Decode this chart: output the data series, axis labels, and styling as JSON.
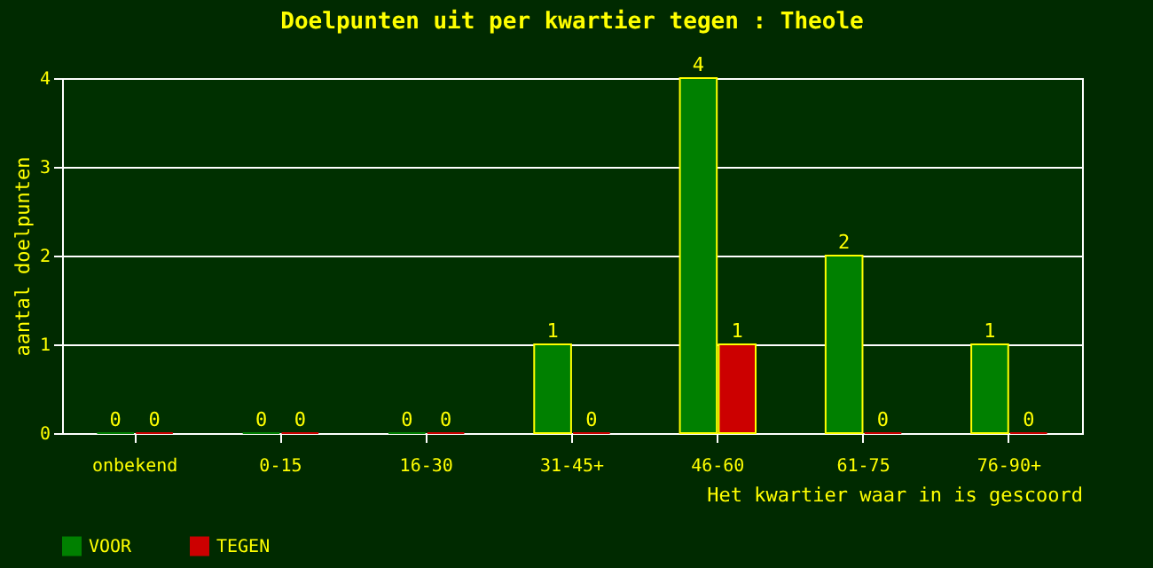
{
  "chart_data": {
    "type": "bar",
    "title": "Doelpunten uit per kwartier tegen : Theole",
    "xlabel": "Het kwartier waar in is gescoord",
    "ylabel": "aantal doelpunten",
    "categories": [
      "onbekend",
      "0-15",
      "16-30",
      "31-45+",
      "46-60",
      "61-75",
      "76-90+"
    ],
    "series": [
      {
        "name": "VOOR",
        "color": "#008000",
        "values": [
          0,
          0,
          0,
          1,
          4,
          2,
          1
        ]
      },
      {
        "name": "TEGEN",
        "color": "#cc0000",
        "values": [
          0,
          0,
          0,
          0,
          1,
          0,
          0
        ]
      }
    ],
    "ylim": [
      0,
      4
    ],
    "yticks": [
      0,
      1,
      2,
      3,
      4
    ],
    "grid": "y",
    "data_labels": true,
    "legend": "bottom"
  }
}
